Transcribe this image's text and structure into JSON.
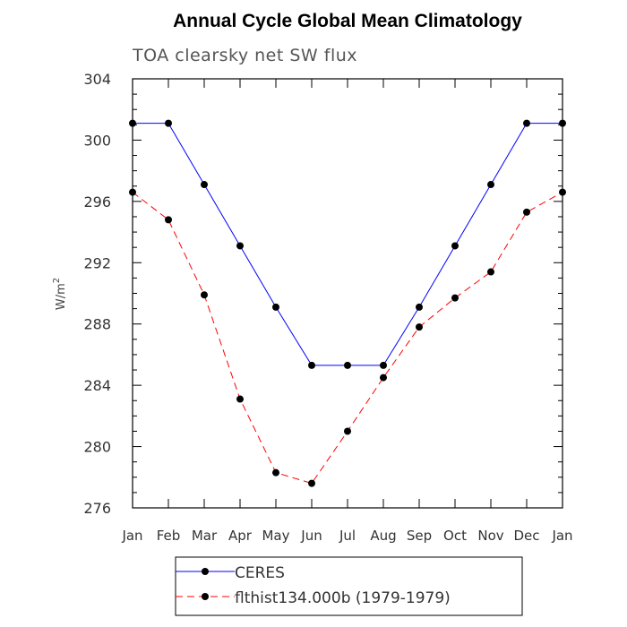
{
  "chart_data": {
    "type": "line",
    "title": "Annual Cycle Global Mean Climatology",
    "subtitle": "TOA clearsky net SW flux",
    "ylabel_base": "W/m",
    "ylabel_sup": "2",
    "xlabel": "",
    "categories": [
      "Jan",
      "Feb",
      "Mar",
      "Apr",
      "May",
      "Jun",
      "Jul",
      "Aug",
      "Sep",
      "Oct",
      "Nov",
      "Dec",
      "Jan"
    ],
    "ylim": [
      276,
      304
    ],
    "yticks": [
      "276",
      "280",
      "284",
      "288",
      "292",
      "296",
      "300",
      "304"
    ],
    "grid": false,
    "legend_position": "bottom",
    "series": [
      {
        "name": "CERES",
        "color": "#0000ff",
        "dash": "solid",
        "values": [
          301.1,
          301.1,
          297.1,
          293.1,
          289.1,
          285.3,
          285.3,
          285.3,
          289.1,
          293.1,
          297.1,
          301.1,
          301.1
        ]
      },
      {
        "name": "flthist134.000b (1979-1979)",
        "color": "#ff0000",
        "dash": "dashed",
        "values": [
          296.6,
          294.8,
          289.9,
          283.1,
          278.3,
          277.6,
          281.0,
          284.5,
          287.8,
          289.7,
          291.4,
          295.3,
          296.6
        ]
      }
    ]
  }
}
